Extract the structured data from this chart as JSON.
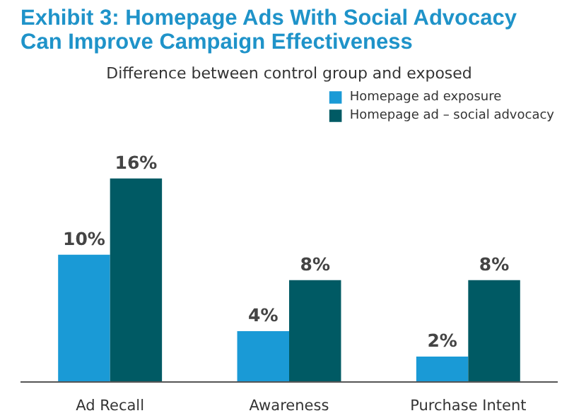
{
  "chart_data": {
    "type": "bar",
    "title": "Exhibit 3: Homepage Ads With Social Advocacy Can Improve Campaign Effectiveness",
    "subtitle": "Difference between control group and exposed",
    "categories": [
      "Ad Recall",
      "Awareness",
      "Purchase Intent"
    ],
    "series": [
      {
        "name": "Homepage ad exposure",
        "color": "#1a9ad6",
        "values": [
          10,
          4,
          2
        ],
        "value_labels": [
          "10%",
          "4%",
          "2%"
        ]
      },
      {
        "name": "Homepage ad – social advocacy",
        "color": "#005a64",
        "values": [
          16,
          8,
          8
        ],
        "value_labels": [
          "16%",
          "8%",
          "8%"
        ]
      }
    ],
    "legend": "top right"
  }
}
